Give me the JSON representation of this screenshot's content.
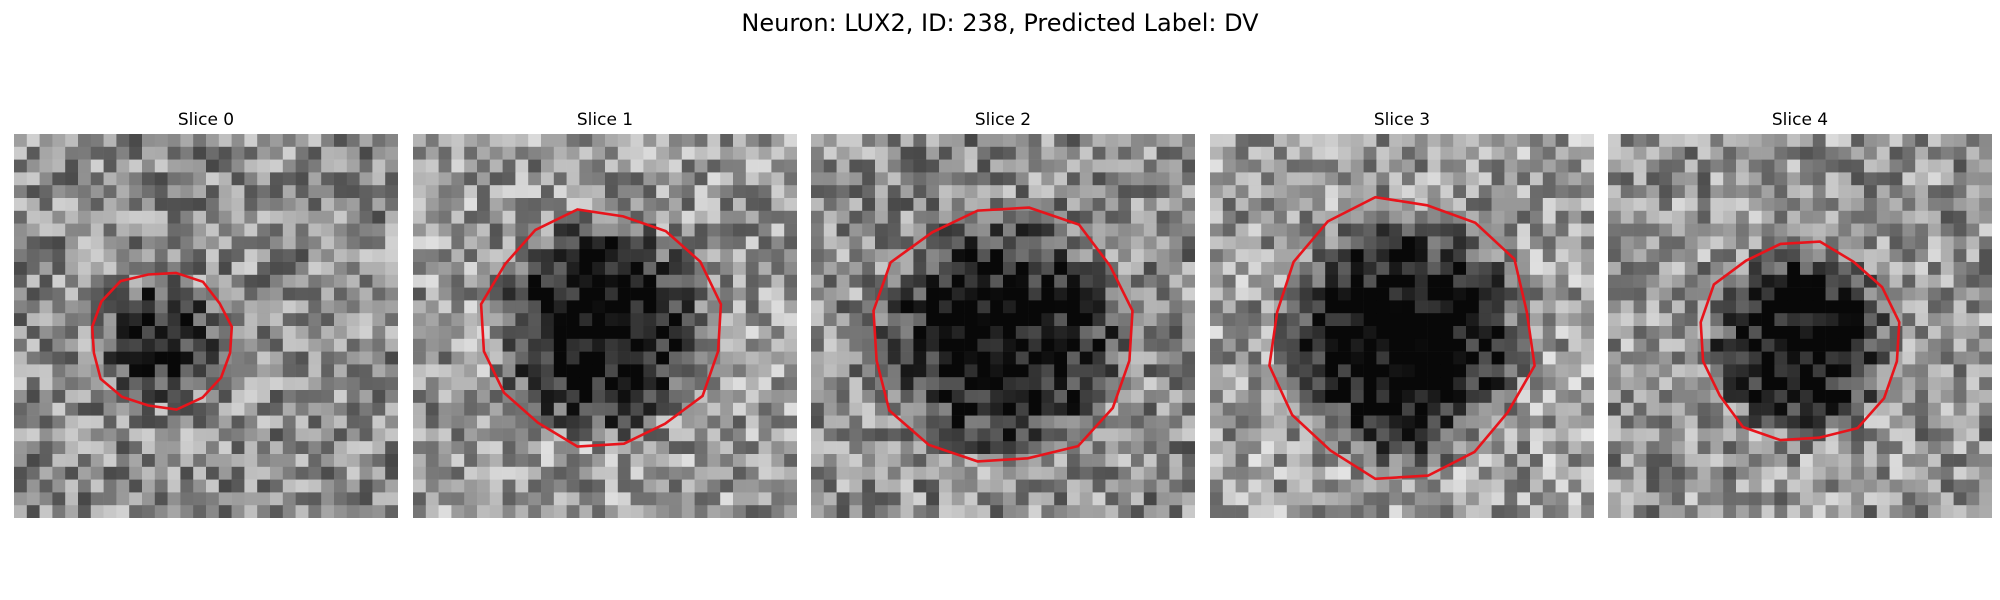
{
  "figure": {
    "title": "Neuron: LUX2, ID: 238, Predicted Label: DV"
  },
  "panels": [
    {
      "label": "Slice 0",
      "contour_color": "#e8141b"
    },
    {
      "label": "Slice 1",
      "contour_color": "#e8141b"
    },
    {
      "label": "Slice 2",
      "contour_color": "#e8141b"
    },
    {
      "label": "Slice 3",
      "contour_color": "#e8141b"
    },
    {
      "label": "Slice 4",
      "contour_color": "#e8141b"
    }
  ],
  "colormap": "gray"
}
